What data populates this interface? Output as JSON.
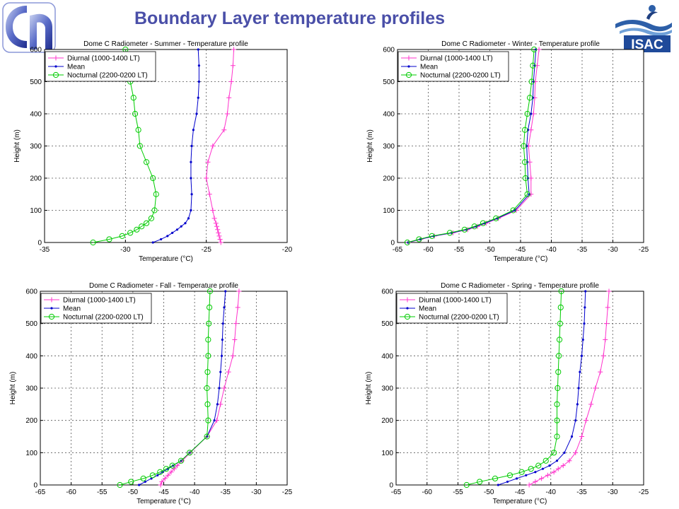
{
  "page": {
    "title": "Boundary Layer temperature profiles",
    "title_color": "#4a4fa8",
    "isac_logo_text": "ISAC"
  },
  "chart_data": [
    {
      "type": "line",
      "title": "Dome C Radiometer - Summer - Temperature profile",
      "xlabel": "Temperature (°C)",
      "ylabel": "Height (m)",
      "xlim": [
        -35,
        -20
      ],
      "xticks": [
        -35,
        -30,
        -25,
        -20
      ],
      "ylim": [
        0,
        600
      ],
      "yticks": [
        0,
        100,
        200,
        300,
        400,
        500,
        600
      ],
      "grid": true,
      "legend_position": "top-left",
      "series": [
        {
          "name": "Diurnal (1000-1400 LT)",
          "color": "#ff33cc",
          "marker": "plus",
          "points": [
            [
              -24.1,
              0
            ],
            [
              -24.15,
              10
            ],
            [
              -24.2,
              20
            ],
            [
              -24.25,
              30
            ],
            [
              -24.3,
              40
            ],
            [
              -24.35,
              50
            ],
            [
              -24.4,
              60
            ],
            [
              -24.5,
              75
            ],
            [
              -24.6,
              100
            ],
            [
              -24.8,
              150
            ],
            [
              -25.0,
              200
            ],
            [
              -24.9,
              250
            ],
            [
              -24.6,
              300
            ],
            [
              -23.9,
              350
            ],
            [
              -23.7,
              400
            ],
            [
              -23.6,
              450
            ],
            [
              -23.45,
              500
            ],
            [
              -23.35,
              550
            ],
            [
              -23.3,
              600
            ]
          ]
        },
        {
          "name": "Mean",
          "color": "#0000cc",
          "marker": "dot",
          "points": [
            [
              -28.3,
              0
            ],
            [
              -27.8,
              10
            ],
            [
              -27.4,
              20
            ],
            [
              -27.1,
              30
            ],
            [
              -26.8,
              40
            ],
            [
              -26.55,
              50
            ],
            [
              -26.3,
              60
            ],
            [
              -26.1,
              75
            ],
            [
              -25.95,
              100
            ],
            [
              -25.9,
              150
            ],
            [
              -25.95,
              200
            ],
            [
              -25.95,
              250
            ],
            [
              -25.9,
              300
            ],
            [
              -25.8,
              350
            ],
            [
              -25.6,
              400
            ],
            [
              -25.5,
              450
            ],
            [
              -25.45,
              500
            ],
            [
              -25.45,
              550
            ],
            [
              -25.5,
              600
            ]
          ]
        },
        {
          "name": "Nocturnal (2200-0200 LT)",
          "color": "#00cc00",
          "marker": "circle",
          "points": [
            [
              -32.0,
              0
            ],
            [
              -31.0,
              10
            ],
            [
              -30.2,
              20
            ],
            [
              -29.7,
              30
            ],
            [
              -29.3,
              40
            ],
            [
              -29.0,
              50
            ],
            [
              -28.7,
              60
            ],
            [
              -28.4,
              75
            ],
            [
              -28.2,
              100
            ],
            [
              -28.1,
              150
            ],
            [
              -28.3,
              200
            ],
            [
              -28.7,
              250
            ],
            [
              -29.1,
              300
            ],
            [
              -29.2,
              350
            ],
            [
              -29.4,
              400
            ],
            [
              -29.5,
              450
            ],
            [
              -29.7,
              500
            ],
            [
              -29.85,
              550
            ],
            [
              -30.0,
              600
            ]
          ]
        }
      ]
    },
    {
      "type": "line",
      "title": "Dome C Radiometer - Winter - Temperature profile",
      "xlabel": "Temperature (°C)",
      "ylabel": "Height (m)",
      "xlim": [
        -65,
        -25
      ],
      "xticks": [
        -65,
        -60,
        -55,
        -50,
        -45,
        -40,
        -35,
        -30,
        -25
      ],
      "ylim": [
        0,
        600
      ],
      "yticks": [
        0,
        100,
        200,
        300,
        400,
        500,
        600
      ],
      "grid": true,
      "legend_position": "top-left",
      "series": [
        {
          "name": "Diurnal (1000-1400 LT)",
          "color": "#ff33cc",
          "marker": "plus",
          "points": [
            [
              -63.2,
              0
            ],
            [
              -61.2,
              10
            ],
            [
              -59,
              20
            ],
            [
              -56,
              30
            ],
            [
              -53.6,
              40
            ],
            [
              -52,
              50
            ],
            [
              -50.6,
              60
            ],
            [
              -48.6,
              75
            ],
            [
              -45.7,
              100
            ],
            [
              -43.3,
              150
            ],
            [
              -43.3,
              200
            ],
            [
              -43.5,
              250
            ],
            [
              -43.7,
              300
            ],
            [
              -43.3,
              350
            ],
            [
              -42.9,
              400
            ],
            [
              -42.7,
              450
            ],
            [
              -42.6,
              500
            ],
            [
              -42.3,
              550
            ],
            [
              -42.0,
              600
            ]
          ]
        },
        {
          "name": "Mean",
          "color": "#0000cc",
          "marker": "dot",
          "points": [
            [
              -63.3,
              0
            ],
            [
              -61.3,
              10
            ],
            [
              -59.1,
              20
            ],
            [
              -56.2,
              30
            ],
            [
              -53.8,
              40
            ],
            [
              -52.2,
              50
            ],
            [
              -50.8,
              60
            ],
            [
              -48.8,
              75
            ],
            [
              -45.9,
              100
            ],
            [
              -43.6,
              150
            ],
            [
              -43.8,
              200
            ],
            [
              -43.9,
              250
            ],
            [
              -44.0,
              300
            ],
            [
              -43.8,
              350
            ],
            [
              -43.3,
              400
            ],
            [
              -43.0,
              450
            ],
            [
              -42.9,
              500
            ],
            [
              -42.7,
              550
            ],
            [
              -42.5,
              600
            ]
          ]
        },
        {
          "name": "Nocturnal (2200-0200 LT)",
          "color": "#00cc00",
          "marker": "circle",
          "points": [
            [
              -63.4,
              0
            ],
            [
              -61.5,
              10
            ],
            [
              -59.4,
              20
            ],
            [
              -56.5,
              30
            ],
            [
              -54.1,
              40
            ],
            [
              -52.5,
              50
            ],
            [
              -51.1,
              60
            ],
            [
              -49.0,
              75
            ],
            [
              -46.2,
              100
            ],
            [
              -43.9,
              150
            ],
            [
              -44.2,
              200
            ],
            [
              -44.3,
              250
            ],
            [
              -44.5,
              300
            ],
            [
              -44.3,
              350
            ],
            [
              -43.9,
              400
            ],
            [
              -43.5,
              450
            ],
            [
              -43.2,
              500
            ],
            [
              -43.0,
              550
            ],
            [
              -42.8,
              600
            ]
          ]
        }
      ]
    },
    {
      "type": "line",
      "title": "Dome C Radiometer - Fall - Temperature profile",
      "xlabel": "Temperature (°C)",
      "ylabel": "Height (m)",
      "xlim": [
        -65,
        -25
      ],
      "xticks": [
        -65,
        -60,
        -55,
        -50,
        -45,
        -40,
        -35,
        -30,
        -25
      ],
      "ylim": [
        0,
        600
      ],
      "yticks": [
        0,
        100,
        200,
        300,
        400,
        500,
        600
      ],
      "grid": true,
      "legend_position": "top-left",
      "series": [
        {
          "name": "Diurnal (1000-1400 LT)",
          "color": "#ff33cc",
          "marker": "plus",
          "points": [
            [
              -45.5,
              0
            ],
            [
              -45.3,
              10
            ],
            [
              -44.8,
              20
            ],
            [
              -44.3,
              30
            ],
            [
              -43.8,
              40
            ],
            [
              -43.3,
              50
            ],
            [
              -42.8,
              60
            ],
            [
              -42.0,
              75
            ],
            [
              -40.7,
              100
            ],
            [
              -38.0,
              150
            ],
            [
              -36.4,
              200
            ],
            [
              -35.8,
              250
            ],
            [
              -35.2,
              300
            ],
            [
              -34.5,
              350
            ],
            [
              -33.8,
              400
            ],
            [
              -33.5,
              450
            ],
            [
              -33.3,
              500
            ],
            [
              -33.0,
              550
            ],
            [
              -32.8,
              600
            ]
          ]
        },
        {
          "name": "Mean",
          "color": "#0000cc",
          "marker": "dot",
          "points": [
            [
              -49.0,
              0
            ],
            [
              -48.0,
              10
            ],
            [
              -47.0,
              20
            ],
            [
              -46.0,
              30
            ],
            [
              -45.2,
              40
            ],
            [
              -44.3,
              50
            ],
            [
              -43.5,
              60
            ],
            [
              -42.2,
              75
            ],
            [
              -40.8,
              100
            ],
            [
              -38.0,
              150
            ],
            [
              -36.8,
              200
            ],
            [
              -36.3,
              250
            ],
            [
              -36.0,
              300
            ],
            [
              -35.8,
              350
            ],
            [
              -35.6,
              400
            ],
            [
              -35.5,
              450
            ],
            [
              -35.4,
              500
            ],
            [
              -35.2,
              550
            ],
            [
              -35.0,
              600
            ]
          ]
        },
        {
          "name": "Nocturnal (2200-0200 LT)",
          "color": "#00cc00",
          "marker": "circle",
          "points": [
            [
              -52.1,
              0
            ],
            [
              -50.3,
              10
            ],
            [
              -48.3,
              20
            ],
            [
              -46.8,
              30
            ],
            [
              -45.6,
              40
            ],
            [
              -44.6,
              50
            ],
            [
              -43.6,
              60
            ],
            [
              -42.2,
              75
            ],
            [
              -40.8,
              100
            ],
            [
              -38.0,
              150
            ],
            [
              -37.8,
              200
            ],
            [
              -37.9,
              250
            ],
            [
              -38.0,
              300
            ],
            [
              -37.9,
              350
            ],
            [
              -37.8,
              400
            ],
            [
              -37.8,
              450
            ],
            [
              -37.7,
              500
            ],
            [
              -37.6,
              550
            ],
            [
              -37.5,
              600
            ]
          ]
        }
      ]
    },
    {
      "type": "line",
      "title": "Dome C Radiometer - Spring - Temperature profile",
      "xlabel": "Temperature (°C)",
      "ylabel": "Height (m)",
      "xlim": [
        -65,
        -25
      ],
      "xticks": [
        -65,
        -60,
        -55,
        -50,
        -45,
        -40,
        -35,
        -30,
        -25
      ],
      "ylim": [
        0,
        600
      ],
      "yticks": [
        0,
        100,
        200,
        300,
        400,
        500,
        600
      ],
      "grid": true,
      "legend_position": "top-left",
      "series": [
        {
          "name": "Diurnal (1000-1400 LT)",
          "color": "#ff33cc",
          "marker": "plus",
          "points": [
            [
              -43.5,
              0
            ],
            [
              -42.5,
              10
            ],
            [
              -41.5,
              20
            ],
            [
              -40.5,
              30
            ],
            [
              -39.5,
              40
            ],
            [
              -38.8,
              50
            ],
            [
              -38.0,
              60
            ],
            [
              -37.0,
              75
            ],
            [
              -36.0,
              100
            ],
            [
              -35.0,
              150
            ],
            [
              -34.3,
              200
            ],
            [
              -33.5,
              250
            ],
            [
              -32.8,
              300
            ],
            [
              -32.0,
              350
            ],
            [
              -31.5,
              400
            ],
            [
              -31.2,
              450
            ],
            [
              -31.0,
              500
            ],
            [
              -30.8,
              550
            ],
            [
              -30.6,
              600
            ]
          ]
        },
        {
          "name": "Mean",
          "color": "#0000cc",
          "marker": "dot",
          "points": [
            [
              -48.5,
              0
            ],
            [
              -47.0,
              10
            ],
            [
              -45.5,
              20
            ],
            [
              -44.0,
              30
            ],
            [
              -42.5,
              40
            ],
            [
              -41.3,
              50
            ],
            [
              -40.2,
              60
            ],
            [
              -39.0,
              75
            ],
            [
              -37.8,
              100
            ],
            [
              -36.6,
              150
            ],
            [
              -36.0,
              200
            ],
            [
              -35.7,
              250
            ],
            [
              -35.5,
              300
            ],
            [
              -35.3,
              350
            ],
            [
              -35.0,
              400
            ],
            [
              -34.8,
              450
            ],
            [
              -34.6,
              500
            ],
            [
              -34.5,
              550
            ],
            [
              -34.4,
              600
            ]
          ]
        },
        {
          "name": "Nocturnal (2200-0200 LT)",
          "color": "#00cc00",
          "marker": "circle",
          "points": [
            [
              -53.6,
              0
            ],
            [
              -51.5,
              10
            ],
            [
              -49.0,
              20
            ],
            [
              -46.6,
              30
            ],
            [
              -44.7,
              40
            ],
            [
              -43.2,
              50
            ],
            [
              -42.0,
              60
            ],
            [
              -40.8,
              75
            ],
            [
              -39.5,
              100
            ],
            [
              -39.0,
              150
            ],
            [
              -39.0,
              200
            ],
            [
              -39.0,
              250
            ],
            [
              -38.9,
              300
            ],
            [
              -38.8,
              350
            ],
            [
              -38.7,
              400
            ],
            [
              -38.6,
              450
            ],
            [
              -38.5,
              500
            ],
            [
              -38.4,
              550
            ],
            [
              -38.3,
              600
            ]
          ]
        }
      ]
    }
  ]
}
